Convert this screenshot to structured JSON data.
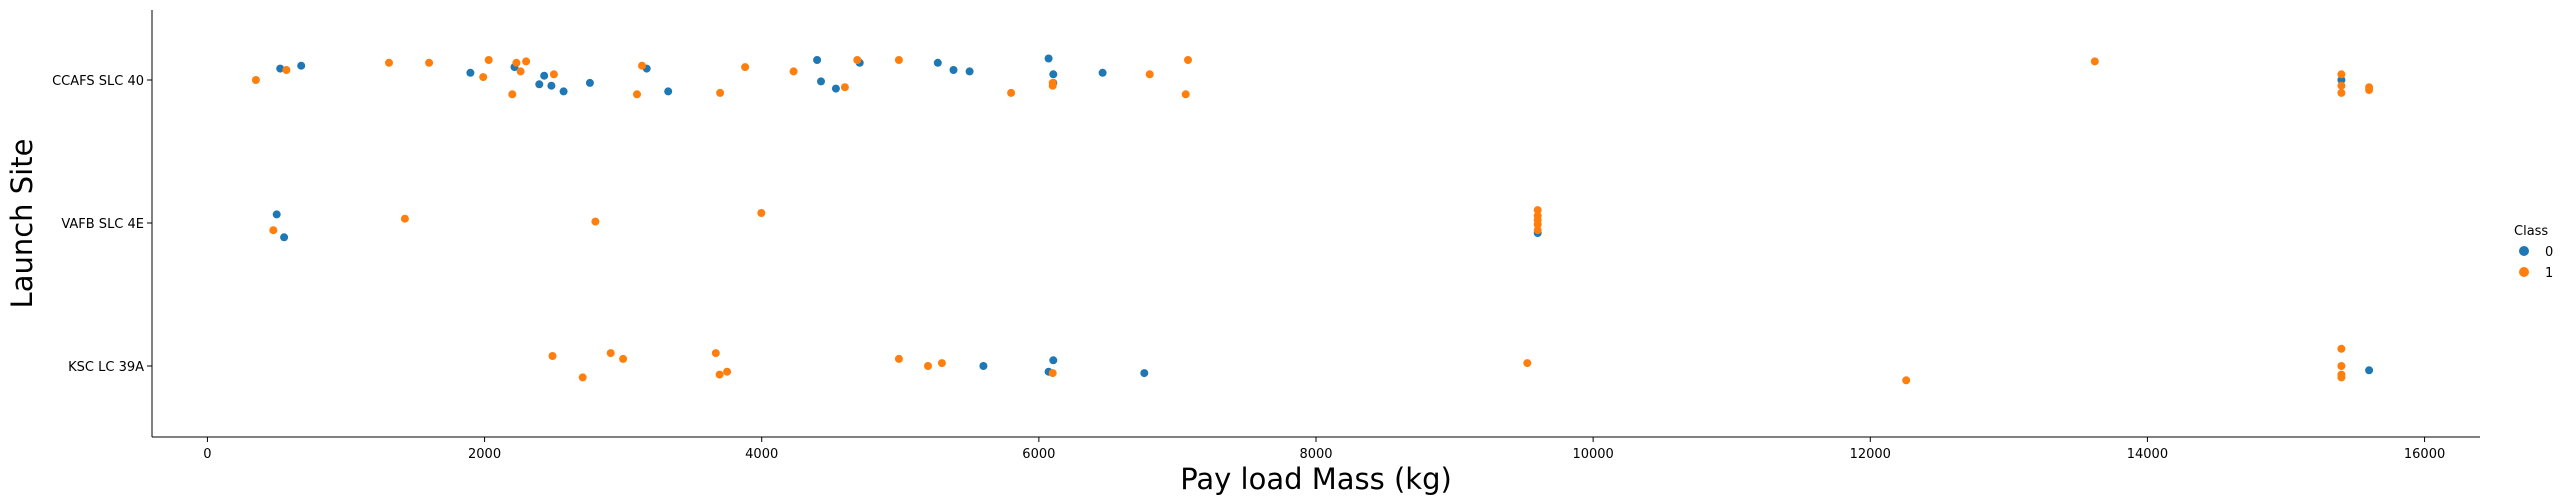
{
  "chart_data": {
    "type": "scatter",
    "xlabel": "Pay load Mass (kg)",
    "ylabel": "Launch Site",
    "xlim": [
      -400,
      16400
    ],
    "xticks": [
      0,
      2000,
      4000,
      6000,
      8000,
      10000,
      12000,
      14000,
      16000
    ],
    "xtick_labels": [
      "0",
      "2000",
      "4000",
      "6000",
      "8000",
      "10000",
      "12000",
      "14000",
      "16000"
    ],
    "categories": [
      "CCAFS SLC 40",
      "VAFB SLC 4E",
      "KSC LC 39A"
    ],
    "grid": false,
    "legend": {
      "title": "Class",
      "placement": "right",
      "entries": [
        {
          "label": "0",
          "color": "#1f77b4"
        },
        {
          "label": "1",
          "color": "#ff7f0e"
        }
      ]
    },
    "series": [
      {
        "name": "0",
        "color": "#1f77b4",
        "points": [
          {
            "x": 525,
            "site": "CCAFS SLC 40",
            "j": 0.08
          },
          {
            "x": 677,
            "site": "CCAFS SLC 40",
            "j": 0.1
          },
          {
            "x": 1898,
            "site": "CCAFS SLC 40",
            "j": 0.05
          },
          {
            "x": 2216,
            "site": "CCAFS SLC 40",
            "j": 0.09
          },
          {
            "x": 2395,
            "site": "CCAFS SLC 40",
            "j": -0.03
          },
          {
            "x": 2430,
            "site": "CCAFS SLC 40",
            "j": 0.03
          },
          {
            "x": 2482,
            "site": "CCAFS SLC 40",
            "j": -0.04
          },
          {
            "x": 2570,
            "site": "CCAFS SLC 40",
            "j": -0.08
          },
          {
            "x": 2760,
            "site": "CCAFS SLC 40",
            "j": -0.02
          },
          {
            "x": 3170,
            "site": "CCAFS SLC 40",
            "j": 0.08
          },
          {
            "x": 3325,
            "site": "CCAFS SLC 40",
            "j": -0.08
          },
          {
            "x": 4400,
            "site": "CCAFS SLC 40",
            "j": 0.14
          },
          {
            "x": 4428,
            "site": "CCAFS SLC 40",
            "j": -0.01
          },
          {
            "x": 4535,
            "site": "CCAFS SLC 40",
            "j": -0.06
          },
          {
            "x": 4707,
            "site": "CCAFS SLC 40",
            "j": 0.12
          },
          {
            "x": 5271,
            "site": "CCAFS SLC 40",
            "j": 0.12
          },
          {
            "x": 5384,
            "site": "CCAFS SLC 40",
            "j": 0.07
          },
          {
            "x": 5500,
            "site": "CCAFS SLC 40",
            "j": 0.06
          },
          {
            "x": 6070,
            "site": "CCAFS SLC 40",
            "j": 0.15
          },
          {
            "x": 6104,
            "site": "CCAFS SLC 40",
            "j": 0.04
          },
          {
            "x": 6104,
            "site": "CCAFS SLC 40",
            "j": -0.02
          },
          {
            "x": 6460,
            "site": "CCAFS SLC 40",
            "j": 0.05
          },
          {
            "x": 15400,
            "site": "CCAFS SLC 40",
            "j": 0.0
          },
          {
            "x": 500,
            "site": "VAFB SLC 4E",
            "j": 0.06
          },
          {
            "x": 553,
            "site": "VAFB SLC 4E",
            "j": -0.1
          },
          {
            "x": 9600,
            "site": "VAFB SLC 4E",
            "j": -0.07
          },
          {
            "x": 5600,
            "site": "KSC LC 39A",
            "j": 0.0
          },
          {
            "x": 6070,
            "site": "KSC LC 39A",
            "j": -0.04
          },
          {
            "x": 6104,
            "site": "KSC LC 39A",
            "j": 0.04
          },
          {
            "x": 6761,
            "site": "KSC LC 39A",
            "j": -0.05
          },
          {
            "x": 15600,
            "site": "KSC LC 39A",
            "j": -0.03
          }
        ]
      },
      {
        "name": "1",
        "color": "#ff7f0e",
        "points": [
          {
            "x": 350,
            "site": "CCAFS SLC 40",
            "j": 0.0
          },
          {
            "x": 570,
            "site": "CCAFS SLC 40",
            "j": 0.07
          },
          {
            "x": 1310,
            "site": "CCAFS SLC 40",
            "j": 0.12
          },
          {
            "x": 1600,
            "site": "CCAFS SLC 40",
            "j": 0.12
          },
          {
            "x": 1990,
            "site": "CCAFS SLC 40",
            "j": 0.02
          },
          {
            "x": 2030,
            "site": "CCAFS SLC 40",
            "j": 0.14
          },
          {
            "x": 2200,
            "site": "CCAFS SLC 40",
            "j": -0.1
          },
          {
            "x": 2230,
            "site": "CCAFS SLC 40",
            "j": 0.12
          },
          {
            "x": 2260,
            "site": "CCAFS SLC 40",
            "j": 0.06
          },
          {
            "x": 2300,
            "site": "CCAFS SLC 40",
            "j": 0.13
          },
          {
            "x": 2500,
            "site": "CCAFS SLC 40",
            "j": 0.04
          },
          {
            "x": 3100,
            "site": "CCAFS SLC 40",
            "j": -0.1
          },
          {
            "x": 3136,
            "site": "CCAFS SLC 40",
            "j": 0.1
          },
          {
            "x": 3700,
            "site": "CCAFS SLC 40",
            "j": -0.09
          },
          {
            "x": 3880,
            "site": "CCAFS SLC 40",
            "j": 0.09
          },
          {
            "x": 4230,
            "site": "CCAFS SLC 40",
            "j": 0.06
          },
          {
            "x": 4600,
            "site": "CCAFS SLC 40",
            "j": -0.05
          },
          {
            "x": 4690,
            "site": "CCAFS SLC 40",
            "j": 0.14
          },
          {
            "x": 4990,
            "site": "CCAFS SLC 40",
            "j": 0.14
          },
          {
            "x": 5800,
            "site": "CCAFS SLC 40",
            "j": -0.09
          },
          {
            "x": 6100,
            "site": "CCAFS SLC 40",
            "j": -0.04
          },
          {
            "x": 6100,
            "site": "CCAFS SLC 40",
            "j": -0.02
          },
          {
            "x": 6800,
            "site": "CCAFS SLC 40",
            "j": 0.04
          },
          {
            "x": 7060,
            "site": "CCAFS SLC 40",
            "j": -0.1
          },
          {
            "x": 7076,
            "site": "CCAFS SLC 40",
            "j": 0.14
          },
          {
            "x": 13620,
            "site": "CCAFS SLC 40",
            "j": 0.13
          },
          {
            "x": 15400,
            "site": "CCAFS SLC 40",
            "j": 0.04
          },
          {
            "x": 15400,
            "site": "CCAFS SLC 40",
            "j": -0.04
          },
          {
            "x": 15400,
            "site": "CCAFS SLC 40",
            "j": -0.09
          },
          {
            "x": 15600,
            "site": "CCAFS SLC 40",
            "j": -0.05
          },
          {
            "x": 15600,
            "site": "CCAFS SLC 40",
            "j": -0.07
          },
          {
            "x": 475,
            "site": "VAFB SLC 4E",
            "j": -0.05
          },
          {
            "x": 1425,
            "site": "VAFB SLC 4E",
            "j": 0.03
          },
          {
            "x": 2800,
            "site": "VAFB SLC 4E",
            "j": 0.01
          },
          {
            "x": 3997,
            "site": "VAFB SLC 4E",
            "j": 0.07
          },
          {
            "x": 9600,
            "site": "VAFB SLC 4E",
            "j": 0.09
          },
          {
            "x": 9600,
            "site": "VAFB SLC 4E",
            "j": 0.05
          },
          {
            "x": 9600,
            "site": "VAFB SLC 4E",
            "j": 0.02
          },
          {
            "x": 9600,
            "site": "VAFB SLC 4E",
            "j": -0.01
          },
          {
            "x": 9600,
            "site": "VAFB SLC 4E",
            "j": -0.05
          },
          {
            "x": 2490,
            "site": "KSC LC 39A",
            "j": 0.07
          },
          {
            "x": 2708,
            "site": "KSC LC 39A",
            "j": -0.08
          },
          {
            "x": 2910,
            "site": "KSC LC 39A",
            "j": 0.09
          },
          {
            "x": 3000,
            "site": "KSC LC 39A",
            "j": 0.05
          },
          {
            "x": 3669,
            "site": "KSC LC 39A",
            "j": 0.09
          },
          {
            "x": 3696,
            "site": "KSC LC 39A",
            "j": -0.06
          },
          {
            "x": 3750,
            "site": "KSC LC 39A",
            "j": -0.04
          },
          {
            "x": 4990,
            "site": "KSC LC 39A",
            "j": 0.05
          },
          {
            "x": 5200,
            "site": "KSC LC 39A",
            "j": 0.0
          },
          {
            "x": 5300,
            "site": "KSC LC 39A",
            "j": 0.02
          },
          {
            "x": 6100,
            "site": "KSC LC 39A",
            "j": -0.05
          },
          {
            "x": 9525,
            "site": "KSC LC 39A",
            "j": 0.02
          },
          {
            "x": 12259,
            "site": "KSC LC 39A",
            "j": -0.1
          },
          {
            "x": 15400,
            "site": "KSC LC 39A",
            "j": 0.12
          },
          {
            "x": 15400,
            "site": "KSC LC 39A",
            "j": 0.0
          },
          {
            "x": 15400,
            "site": "KSC LC 39A",
            "j": -0.06
          },
          {
            "x": 15400,
            "site": "KSC LC 39A",
            "j": -0.08
          }
        ]
      }
    ]
  }
}
